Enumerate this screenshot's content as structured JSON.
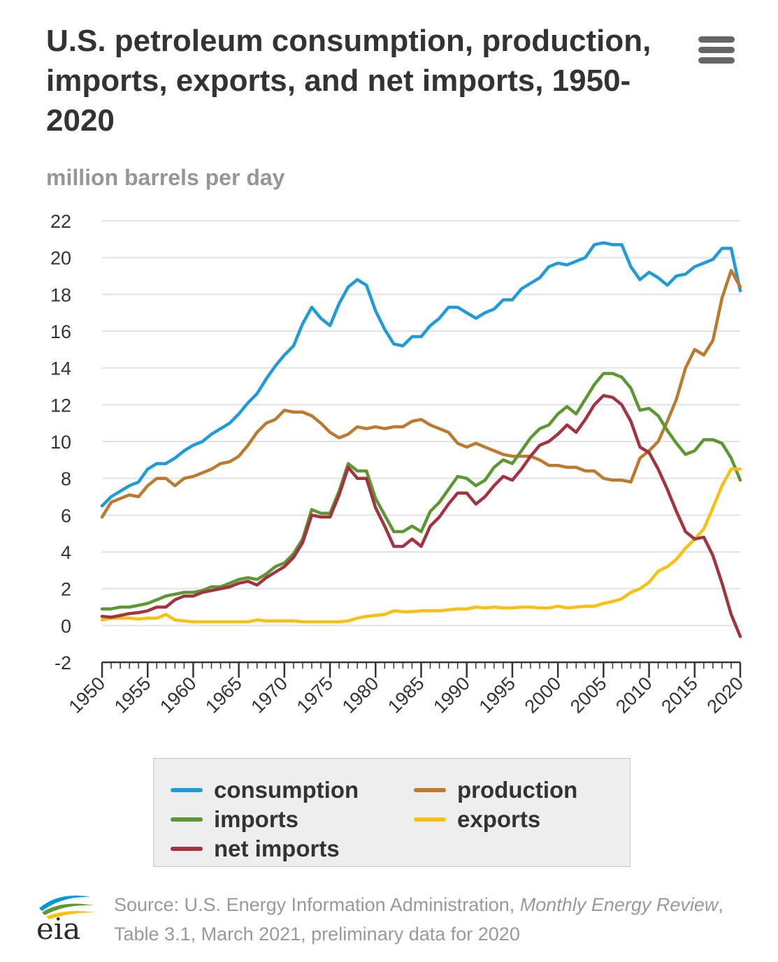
{
  "title": "U.S. petroleum consumption, production, imports, exports, and net imports, 1950-2020",
  "unit_label": "million barrels per day",
  "menu": {
    "icon": "hamburger-menu-icon"
  },
  "source": {
    "prefix": "Source: U.S. Energy Information Administration,",
    "publication": "Monthly Energy Review",
    "suffix": ", Table 3.1, March 2021, preliminary data for 2020"
  },
  "logo": {
    "text": "eia",
    "colors": [
      "#0096d7",
      "#5d9732",
      "#ffc20e"
    ]
  },
  "chart_data": {
    "type": "line",
    "x": [
      1950,
      1951,
      1952,
      1953,
      1954,
      1955,
      1956,
      1957,
      1958,
      1959,
      1960,
      1961,
      1962,
      1963,
      1964,
      1965,
      1966,
      1967,
      1968,
      1969,
      1970,
      1971,
      1972,
      1973,
      1974,
      1975,
      1976,
      1977,
      1978,
      1979,
      1980,
      1981,
      1982,
      1983,
      1984,
      1985,
      1986,
      1987,
      1988,
      1989,
      1990,
      1991,
      1992,
      1993,
      1994,
      1995,
      1996,
      1997,
      1998,
      1999,
      2000,
      2001,
      2002,
      2003,
      2004,
      2005,
      2006,
      2007,
      2008,
      2009,
      2010,
      2011,
      2012,
      2013,
      2014,
      2015,
      2016,
      2017,
      2018,
      2019,
      2020
    ],
    "ylim": [
      -2,
      22
    ],
    "yticks": [
      -2,
      0,
      2,
      4,
      6,
      8,
      10,
      12,
      14,
      16,
      18,
      20,
      22
    ],
    "xticks": [
      1950,
      1955,
      1960,
      1965,
      1970,
      1975,
      1980,
      1985,
      1990,
      1995,
      2000,
      2005,
      2010,
      2015,
      2020
    ],
    "grid": true,
    "legend_position": "bottom",
    "series": [
      {
        "name": "consumption",
        "color": "#1f9bd7",
        "values": [
          6.5,
          7.0,
          7.3,
          7.6,
          7.8,
          8.5,
          8.8,
          8.8,
          9.1,
          9.5,
          9.8,
          10.0,
          10.4,
          10.7,
          11.0,
          11.5,
          12.1,
          12.6,
          13.4,
          14.1,
          14.7,
          15.2,
          16.4,
          17.3,
          16.7,
          16.3,
          17.5,
          18.4,
          18.8,
          18.5,
          17.1,
          16.1,
          15.3,
          15.2,
          15.7,
          15.7,
          16.3,
          16.7,
          17.3,
          17.3,
          17.0,
          16.7,
          17.0,
          17.2,
          17.7,
          17.7,
          18.3,
          18.6,
          18.9,
          19.5,
          19.7,
          19.6,
          19.8,
          20.0,
          20.7,
          20.8,
          20.7,
          20.7,
          19.5,
          18.8,
          19.2,
          18.9,
          18.5,
          19.0,
          19.1,
          19.5,
          19.7,
          19.9,
          20.5,
          20.5,
          18.2
        ]
      },
      {
        "name": "production",
        "color": "#bb7a2e",
        "values": [
          5.9,
          6.7,
          6.9,
          7.1,
          7.0,
          7.6,
          8.0,
          8.0,
          7.6,
          8.0,
          8.1,
          8.3,
          8.5,
          8.8,
          8.9,
          9.2,
          9.8,
          10.5,
          11.0,
          11.2,
          11.7,
          11.6,
          11.6,
          11.4,
          11.0,
          10.5,
          10.2,
          10.4,
          10.8,
          10.7,
          10.8,
          10.7,
          10.8,
          10.8,
          11.1,
          11.2,
          10.9,
          10.7,
          10.5,
          9.9,
          9.7,
          9.9,
          9.7,
          9.5,
          9.3,
          9.2,
          9.2,
          9.2,
          9.0,
          8.7,
          8.7,
          8.6,
          8.6,
          8.4,
          8.4,
          8.0,
          7.9,
          7.9,
          7.8,
          9.1,
          9.5,
          10.0,
          11.1,
          12.3,
          14.0,
          15.0,
          14.7,
          15.5,
          17.8,
          19.3,
          18.4
        ]
      },
      {
        "name": "imports",
        "color": "#5d9732",
        "values": [
          0.9,
          0.9,
          1.0,
          1.0,
          1.1,
          1.2,
          1.4,
          1.6,
          1.7,
          1.8,
          1.8,
          1.9,
          2.1,
          2.1,
          2.3,
          2.5,
          2.6,
          2.5,
          2.8,
          3.2,
          3.4,
          3.9,
          4.7,
          6.3,
          6.1,
          6.1,
          7.3,
          8.8,
          8.4,
          8.4,
          6.9,
          6.0,
          5.1,
          5.1,
          5.4,
          5.1,
          6.2,
          6.7,
          7.4,
          8.1,
          8.0,
          7.6,
          7.9,
          8.6,
          9.0,
          8.8,
          9.5,
          10.2,
          10.7,
          10.9,
          11.5,
          11.9,
          11.5,
          12.3,
          13.1,
          13.7,
          13.7,
          13.5,
          12.9,
          11.7,
          11.8,
          11.4,
          10.6,
          9.9,
          9.3,
          9.5,
          10.1,
          10.1,
          9.9,
          9.1,
          7.9
        ]
      },
      {
        "name": "exports",
        "color": "#f6c112",
        "values": [
          0.3,
          0.4,
          0.4,
          0.4,
          0.35,
          0.4,
          0.4,
          0.6,
          0.3,
          0.25,
          0.2,
          0.2,
          0.2,
          0.2,
          0.2,
          0.2,
          0.2,
          0.3,
          0.25,
          0.25,
          0.25,
          0.25,
          0.2,
          0.2,
          0.2,
          0.2,
          0.2,
          0.25,
          0.4,
          0.5,
          0.55,
          0.6,
          0.8,
          0.75,
          0.75,
          0.8,
          0.8,
          0.8,
          0.85,
          0.9,
          0.9,
          1.0,
          0.95,
          1.0,
          0.95,
          0.95,
          1.0,
          1.0,
          0.95,
          0.95,
          1.05,
          0.95,
          1.0,
          1.05,
          1.05,
          1.2,
          1.3,
          1.45,
          1.8,
          2.0,
          2.35,
          2.95,
          3.2,
          3.6,
          4.2,
          4.7,
          5.25,
          6.4,
          7.6,
          8.5,
          8.5
        ]
      },
      {
        "name": "net imports",
        "color": "#a33340",
        "values": [
          0.5,
          0.45,
          0.55,
          0.65,
          0.7,
          0.8,
          1.0,
          1.0,
          1.4,
          1.6,
          1.6,
          1.8,
          1.9,
          2.0,
          2.1,
          2.3,
          2.4,
          2.2,
          2.6,
          2.9,
          3.2,
          3.7,
          4.5,
          6.0,
          5.9,
          5.9,
          7.1,
          8.6,
          8.0,
          8.0,
          6.4,
          5.4,
          4.3,
          4.3,
          4.7,
          4.3,
          5.4,
          5.9,
          6.6,
          7.2,
          7.2,
          6.6,
          7.0,
          7.6,
          8.1,
          7.9,
          8.5,
          9.2,
          9.8,
          10.0,
          10.4,
          10.9,
          10.5,
          11.2,
          12.0,
          12.5,
          12.4,
          12.0,
          11.1,
          9.7,
          9.4,
          8.5,
          7.4,
          6.2,
          5.1,
          4.7,
          4.8,
          3.8,
          2.3,
          0.6,
          -0.6
        ]
      }
    ]
  }
}
